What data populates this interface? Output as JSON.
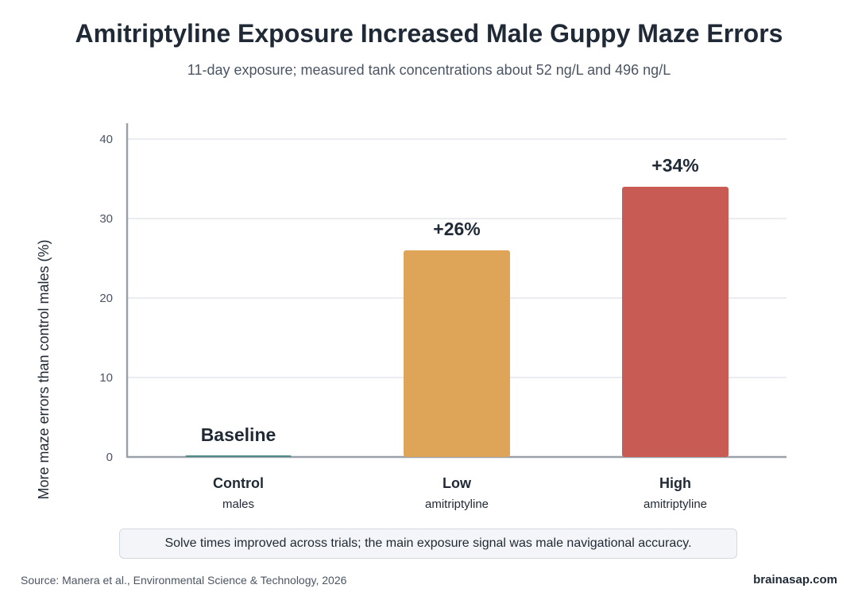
{
  "header": {
    "title": "Amitriptyline Exposure Increased Male Guppy Maze Errors",
    "subtitle": "11-day exposure; measured tank concentrations about 52 ng/L and 496 ng/L"
  },
  "chart_data": {
    "type": "bar",
    "categories": [
      "Control",
      "Low",
      "High"
    ],
    "category_sublabels": [
      "males",
      "amitriptyline",
      "amitriptyline"
    ],
    "values": [
      0,
      26,
      34
    ],
    "data_labels": [
      "Baseline",
      "+26%",
      "+34%"
    ],
    "colors": [
      "#4f8a87",
      "#dea458",
      "#c85c55"
    ],
    "ylabel": "More maze errors than control males (%)",
    "ylim": [
      0,
      40
    ],
    "yticks": [
      0,
      10,
      20,
      30,
      40
    ],
    "grid": true
  },
  "footer": {
    "note": "Solve times improved across trials; the main exposure signal was male navigational accuracy.",
    "source": "Source: Manera et al., Environmental Science & Technology, 2026",
    "brand": "brainasap.com"
  }
}
